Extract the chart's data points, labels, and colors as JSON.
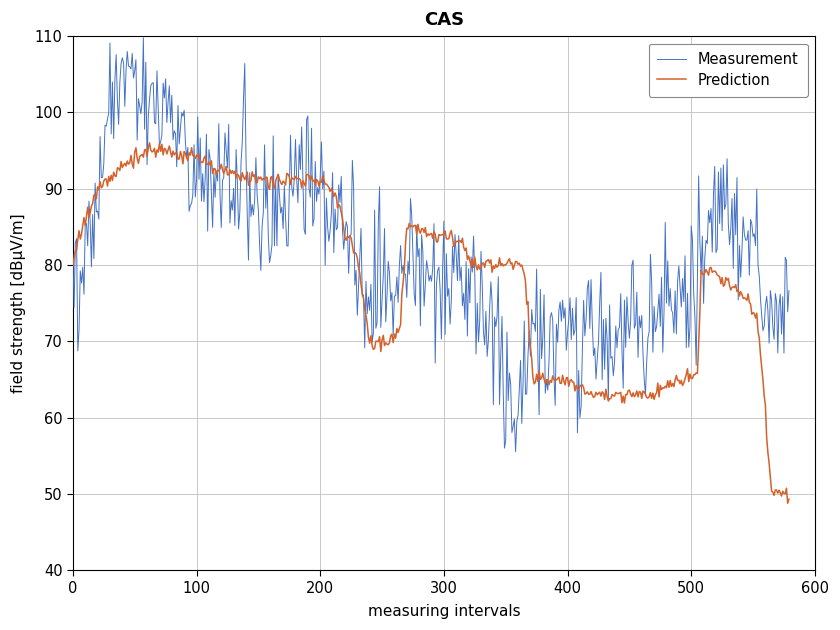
{
  "title": "CAS",
  "xlabel": "measuring intervals",
  "ylabel": "field strength [dBμV/m]",
  "xlim": [
    0,
    600
  ],
  "ylim": [
    40,
    110
  ],
  "xticks": [
    0,
    100,
    200,
    300,
    400,
    500,
    600
  ],
  "yticks": [
    40,
    50,
    60,
    70,
    80,
    90,
    100,
    110
  ],
  "measurement_color": "#4472C4",
  "prediction_color": "#D4622A",
  "background_color": "#ffffff",
  "grid_color": "#c0c0c0",
  "legend_labels": [
    "Measurement",
    "Prediction"
  ],
  "figsize": [
    8.4,
    6.3
  ],
  "dpi": 100
}
